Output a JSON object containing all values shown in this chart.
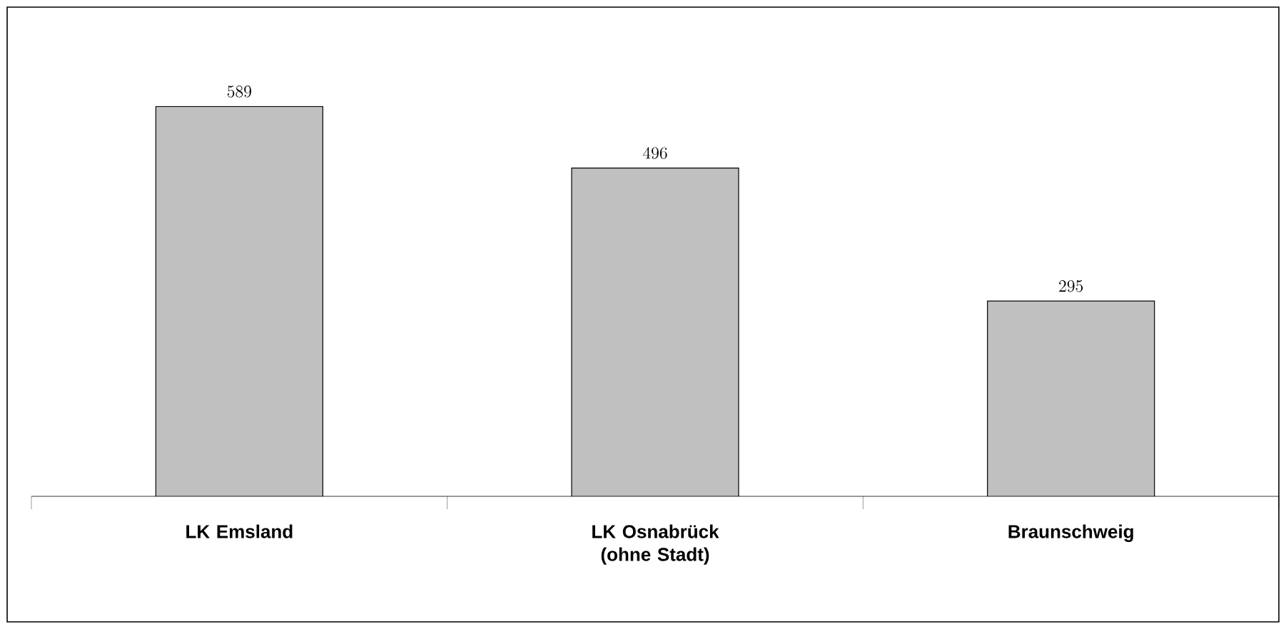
{
  "chart_data": {
    "type": "bar",
    "categories": [
      "LK Emsland",
      "LK Osnabrück (ohne Stadt)",
      "Braunschweig"
    ],
    "values": [
      589,
      496,
      295
    ],
    "color": "#c0c0c0",
    "data_labels": true
  }
}
